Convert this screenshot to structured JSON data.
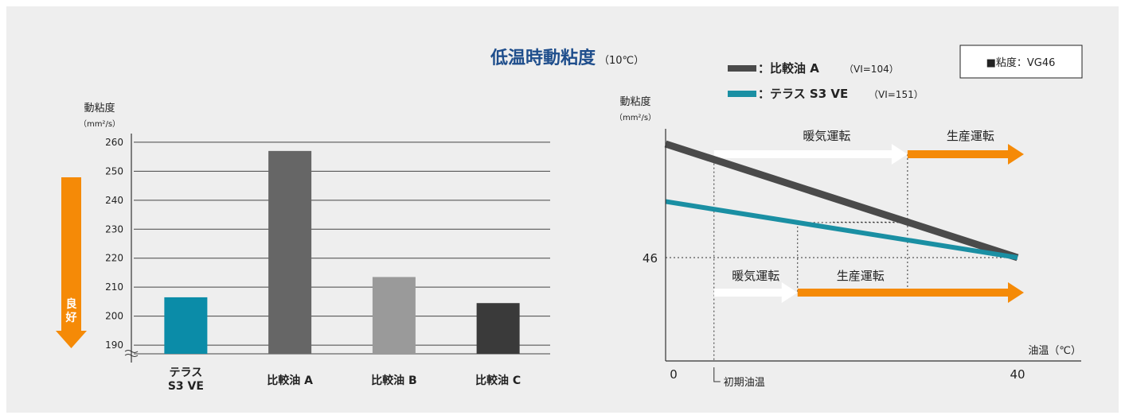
{
  "title": {
    "main": "低温時動粘度",
    "sub": "（10℃）"
  },
  "colors": {
    "title": "#1f4e8c",
    "terrace": "#0b8ca8",
    "compare_a": "#666666",
    "compare_b": "#9a9a9a",
    "compare_c": "#3a3a3a",
    "orange": "#f58a07",
    "line_a": "#4a4a4a",
    "line_terrace": "#1a8fa3"
  },
  "chart_data": [
    {
      "type": "bar",
      "ylabel": "動粘度",
      "yunit": "（mm²/s）",
      "categories": [
        "テラス S3 VE",
        "比較油 A",
        "比較油 B",
        "比較油 C"
      ],
      "category_lines": [
        [
          "テラス",
          "S3 VE"
        ],
        [
          "比較油 A"
        ],
        [
          "比較油 B"
        ],
        [
          "比較油 C"
        ]
      ],
      "values": [
        206.5,
        257,
        213.5,
        204.5
      ],
      "ylim": [
        187,
        263
      ],
      "yticks": [
        190,
        200,
        210,
        220,
        230,
        240,
        250,
        260
      ],
      "axis_break": true,
      "grid": true,
      "indicator": {
        "label": "良好",
        "direction": "down"
      }
    },
    {
      "type": "line",
      "ylabel": "動粘度",
      "yunit": "（mm²/s）",
      "xlabel": "油温（℃）",
      "xlim": [
        0,
        40
      ],
      "xticks": [
        0,
        40
      ],
      "yticks": [
        46
      ],
      "series": [
        {
          "name": "：比較油 A",
          "detail": "（VI=104）",
          "x": [
            0,
            40
          ],
          "y": [
            121,
            46
          ]
        },
        {
          "name": "：テラス S3 VE",
          "detail": "（VI=151）",
          "x": [
            0,
            40
          ],
          "y": [
            83,
            46
          ]
        }
      ],
      "annotations": {
        "initial_temp_label": "初期油温",
        "initial_temp_x": 5.5,
        "terrace_warmup_end_x": 15,
        "compare_warmup_end_x": 27.5,
        "upper_warmup": "暖気運転",
        "upper_production": "生産運転",
        "lower_warmup": "暖気運転",
        "lower_production": "生産運転"
      },
      "legend_position": "top",
      "note": "■粘度：VG46"
    }
  ]
}
